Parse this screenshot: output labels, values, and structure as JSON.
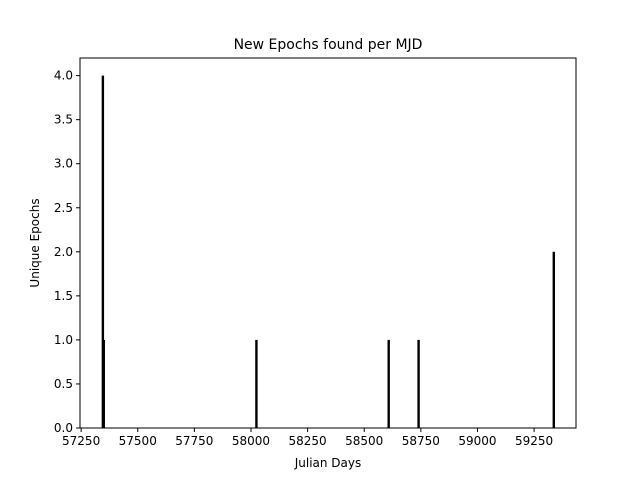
{
  "chart_data": {
    "type": "bar",
    "title": "New Epochs found per MJD",
    "xlabel": "Julian Days",
    "ylabel": "Unique Epochs",
    "xlim": [
      57245,
      59435
    ],
    "ylim": [
      0,
      4.2
    ],
    "xticks": [
      "57250",
      "57500",
      "57750",
      "58000",
      "58250",
      "58500",
      "58750",
      "59000",
      "59250"
    ],
    "yticks": [
      "0.0",
      "0.5",
      "1.0",
      "1.5",
      "2.0",
      "2.5",
      "3.0",
      "3.5",
      "4.0"
    ],
    "x": [
      57346,
      57350,
      58024,
      58608,
      58740,
      59337
    ],
    "values": [
      4,
      1,
      1,
      1,
      1,
      2
    ],
    "grid": false,
    "bar_color": "#000000"
  }
}
